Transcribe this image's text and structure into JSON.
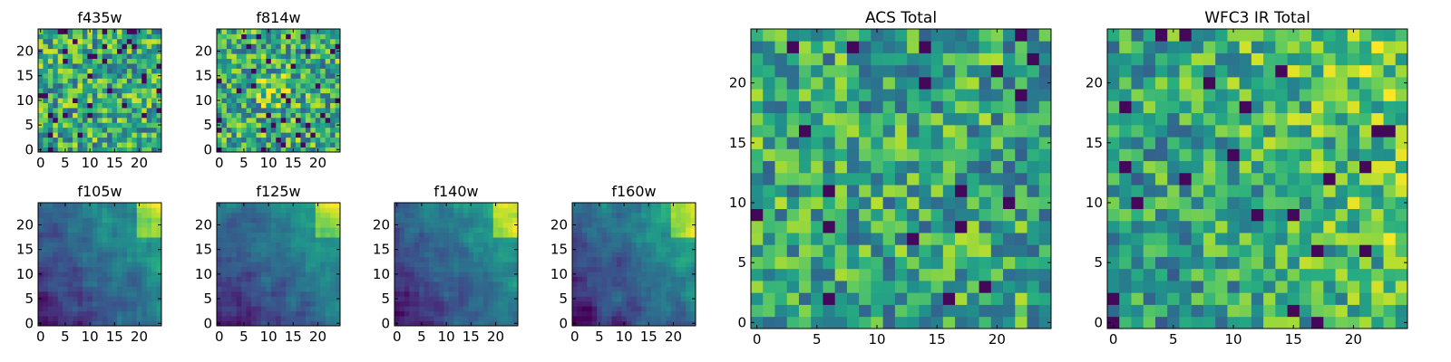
{
  "figure": {
    "colormap": "viridis",
    "colormap_stops": [
      "#440154",
      "#3b528b",
      "#21918c",
      "#5ec962",
      "#fde725"
    ],
    "axis_color": "#000000"
  },
  "chart_data": [
    {
      "type": "heatmap",
      "title": "f435w",
      "nx": 25,
      "ny": 25,
      "xlim": [
        0,
        24
      ],
      "ylim": [
        0,
        24
      ],
      "xticks": [
        0,
        5,
        10,
        15,
        20
      ],
      "yticks": [
        0,
        5,
        10,
        15,
        20
      ],
      "xticklabels": [
        "0",
        "5",
        "10",
        "15",
        "20"
      ],
      "yticklabels": [
        "0",
        "5",
        "10",
        "15",
        "20"
      ],
      "values_note": "per-pixel noise field; sparse dark pixels, mostly green-yellow",
      "pattern": "noise",
      "seed": 11,
      "mean": 0.62,
      "spread": 0.32,
      "dark_frac": 0.06
    },
    {
      "type": "heatmap",
      "title": "f814w",
      "nx": 25,
      "ny": 25,
      "xlim": [
        0,
        24
      ],
      "ylim": [
        0,
        24
      ],
      "xticks": [
        0,
        5,
        10,
        15,
        20
      ],
      "yticks": [
        0,
        5,
        10,
        15,
        20
      ],
      "xticklabels": [
        "0",
        "5",
        "10",
        "15",
        "20"
      ],
      "yticklabels": [
        "0",
        "5",
        "10",
        "15",
        "20"
      ],
      "values_note": "per-pixel noise field; bright patch near center",
      "pattern": "noise_center",
      "seed": 23,
      "mean": 0.62,
      "spread": 0.32,
      "dark_frac": 0.05
    },
    {
      "type": "heatmap",
      "title": "f105w",
      "nx": 25,
      "ny": 25,
      "xlim": [
        0,
        24
      ],
      "ylim": [
        0,
        24
      ],
      "xticks": [
        0,
        5,
        10,
        15,
        20
      ],
      "yticks": [
        0,
        5,
        10,
        15,
        20
      ],
      "xticklabels": [
        "0",
        "5",
        "10",
        "15",
        "20"
      ],
      "yticklabels": [
        "0",
        "5",
        "10",
        "15",
        "20"
      ],
      "values_note": "smooth field; brightest top-right, dark lower-left",
      "pattern": "gradient",
      "seed": 31,
      "mean": 0.45,
      "spread": 0.2,
      "dark_frac": 0.0
    },
    {
      "type": "heatmap",
      "title": "f125w",
      "nx": 25,
      "ny": 25,
      "xlim": [
        0,
        24
      ],
      "ylim": [
        0,
        24
      ],
      "xticks": [
        0,
        5,
        10,
        15,
        20
      ],
      "yticks": [
        0,
        5,
        10,
        15,
        20
      ],
      "xticklabels": [
        "0",
        "5",
        "10",
        "15",
        "20"
      ],
      "yticklabels": [
        "0",
        "5",
        "10",
        "15",
        "20"
      ],
      "values_note": "smooth field; brightest top-right",
      "pattern": "gradient",
      "seed": 37,
      "mean": 0.42,
      "spread": 0.2,
      "dark_frac": 0.0
    },
    {
      "type": "heatmap",
      "title": "f140w",
      "nx": 25,
      "ny": 25,
      "xlim": [
        0,
        24
      ],
      "ylim": [
        0,
        24
      ],
      "xticks": [
        0,
        5,
        10,
        15,
        20
      ],
      "yticks": [
        0,
        5,
        10,
        15,
        20
      ],
      "xticklabels": [
        "0",
        "5",
        "10",
        "15",
        "20"
      ],
      "yticklabels": [
        "0",
        "5",
        "10",
        "15",
        "20"
      ],
      "values_note": "smooth field; brightest top-right",
      "pattern": "gradient",
      "seed": 41,
      "mean": 0.38,
      "spread": 0.22,
      "dark_frac": 0.0
    },
    {
      "type": "heatmap",
      "title": "f160w",
      "nx": 25,
      "ny": 25,
      "xlim": [
        0,
        24
      ],
      "ylim": [
        0,
        24
      ],
      "xticks": [
        0,
        5,
        10,
        15,
        20
      ],
      "yticks": [
        0,
        5,
        10,
        15,
        20
      ],
      "xticklabels": [
        "0",
        "5",
        "10",
        "15",
        "20"
      ],
      "yticklabels": [
        "0",
        "5",
        "10",
        "15",
        "20"
      ],
      "values_note": "smooth field; brightest top-right, dark diagonal lower-left",
      "pattern": "gradient",
      "seed": 43,
      "mean": 0.36,
      "spread": 0.24,
      "dark_frac": 0.0
    },
    {
      "type": "heatmap",
      "title": "ACS Total",
      "nx": 25,
      "ny": 25,
      "xlim": [
        0,
        24
      ],
      "ylim": [
        0,
        24
      ],
      "xticks": [
        0,
        5,
        10,
        15,
        20
      ],
      "yticks": [
        0,
        5,
        10,
        15,
        20
      ],
      "xticklabels": [
        "0",
        "5",
        "10",
        "15",
        "20"
      ],
      "yticklabels": [
        "0",
        "5",
        "10",
        "15",
        "20"
      ],
      "values_note": "blocky noise field, mostly green, some dark purple pixels",
      "pattern": "noise",
      "seed": 53,
      "mean": 0.6,
      "spread": 0.3,
      "dark_frac": 0.04
    },
    {
      "type": "heatmap",
      "title": "WFC3 IR Total",
      "nx": 25,
      "ny": 25,
      "xlim": [
        0,
        24
      ],
      "ylim": [
        0,
        24
      ],
      "xticks": [
        0,
        5,
        10,
        15,
        20
      ],
      "yticks": [
        0,
        5,
        10,
        15,
        20
      ],
      "xticklabels": [
        "0",
        "5",
        "10",
        "15",
        "20"
      ],
      "yticklabels": [
        "0",
        "5",
        "10",
        "15",
        "20"
      ],
      "values_note": "blocky noise field, brighter toward right/top-right",
      "pattern": "noise_right",
      "seed": 61,
      "mean": 0.58,
      "spread": 0.28,
      "dark_frac": 0.03
    }
  ]
}
